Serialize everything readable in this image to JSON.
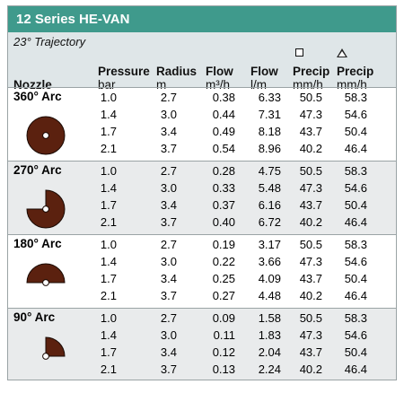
{
  "title": "12 Series HE-VAN",
  "trajectory": "23° Trajectory",
  "headers": {
    "nozzle": "Nozzle",
    "pressure": "Pressure",
    "pressure_unit": "bar",
    "radius": "Radius",
    "radius_unit": "m",
    "flow_m3h": "Flow",
    "flow_m3h_unit": "m³/h",
    "flow_lm": "Flow",
    "flow_lm_unit": "l/m",
    "precip_square": "Precip",
    "precip_square_unit": "mm/h",
    "precip_triangle": "Precip",
    "precip_triangle_unit": "mm/h",
    "square_symbol": "square-outline-icon",
    "triangle_symbol": "triangle-outline-icon"
  },
  "arc_color": "#5b210f",
  "groups": [
    {
      "label": "360° Arc",
      "arc_degrees": 360,
      "rows": [
        {
          "pressure": "1.0",
          "radius": "2.7",
          "flow_m3h": "0.38",
          "flow_lm": "6.33",
          "precip_square": "50.5",
          "precip_triangle": "58.3"
        },
        {
          "pressure": "1.4",
          "radius": "3.0",
          "flow_m3h": "0.44",
          "flow_lm": "7.31",
          "precip_square": "47.3",
          "precip_triangle": "54.6"
        },
        {
          "pressure": "1.7",
          "radius": "3.4",
          "flow_m3h": "0.49",
          "flow_lm": "8.18",
          "precip_square": "43.7",
          "precip_triangle": "50.4"
        },
        {
          "pressure": "2.1",
          "radius": "3.7",
          "flow_m3h": "0.54",
          "flow_lm": "8.96",
          "precip_square": "40.2",
          "precip_triangle": "46.4"
        }
      ]
    },
    {
      "label": "270° Arc",
      "arc_degrees": 270,
      "rows": [
        {
          "pressure": "1.0",
          "radius": "2.7",
          "flow_m3h": "0.28",
          "flow_lm": "4.75",
          "precip_square": "50.5",
          "precip_triangle": "58.3"
        },
        {
          "pressure": "1.4",
          "radius": "3.0",
          "flow_m3h": "0.33",
          "flow_lm": "5.48",
          "precip_square": "47.3",
          "precip_triangle": "54.6"
        },
        {
          "pressure": "1.7",
          "radius": "3.4",
          "flow_m3h": "0.37",
          "flow_lm": "6.16",
          "precip_square": "43.7",
          "precip_triangle": "50.4"
        },
        {
          "pressure": "2.1",
          "radius": "3.7",
          "flow_m3h": "0.40",
          "flow_lm": "6.72",
          "precip_square": "40.2",
          "precip_triangle": "46.4"
        }
      ]
    },
    {
      "label": "180° Arc",
      "arc_degrees": 180,
      "rows": [
        {
          "pressure": "1.0",
          "radius": "2.7",
          "flow_m3h": "0.19",
          "flow_lm": "3.17",
          "precip_square": "50.5",
          "precip_triangle": "58.3"
        },
        {
          "pressure": "1.4",
          "radius": "3.0",
          "flow_m3h": "0.22",
          "flow_lm": "3.66",
          "precip_square": "47.3",
          "precip_triangle": "54.6"
        },
        {
          "pressure": "1.7",
          "radius": "3.4",
          "flow_m3h": "0.25",
          "flow_lm": "4.09",
          "precip_square": "43.7",
          "precip_triangle": "50.4"
        },
        {
          "pressure": "2.1",
          "radius": "3.7",
          "flow_m3h": "0.27",
          "flow_lm": "4.48",
          "precip_square": "40.2",
          "precip_triangle": "46.4"
        }
      ]
    },
    {
      "label": "90° Arc",
      "arc_degrees": 90,
      "rows": [
        {
          "pressure": "1.0",
          "radius": "2.7",
          "flow_m3h": "0.09",
          "flow_lm": "1.58",
          "precip_square": "50.5",
          "precip_triangle": "58.3"
        },
        {
          "pressure": "1.4",
          "radius": "3.0",
          "flow_m3h": "0.11",
          "flow_lm": "1.83",
          "precip_square": "47.3",
          "precip_triangle": "54.6"
        },
        {
          "pressure": "1.7",
          "radius": "3.4",
          "flow_m3h": "0.12",
          "flow_lm": "2.04",
          "precip_square": "43.7",
          "precip_triangle": "50.4"
        },
        {
          "pressure": "2.1",
          "radius": "3.7",
          "flow_m3h": "0.13",
          "flow_lm": "2.24",
          "precip_square": "40.2",
          "precip_triangle": "46.4"
        }
      ]
    }
  ]
}
